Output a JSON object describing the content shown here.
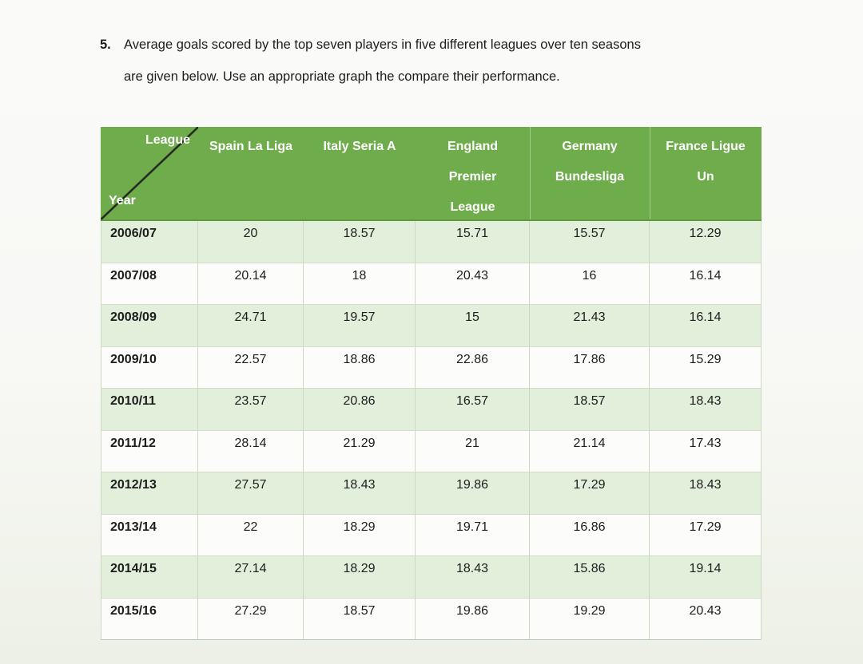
{
  "question": {
    "number": "5.",
    "line1": "Average goals scored by the top seven players in five different leagues over ten seasons",
    "line2": "are given below. Use an appropriate graph the compare their performance."
  },
  "table": {
    "corner": {
      "top_label": "League",
      "bottom_label": "Year"
    },
    "columns": [
      {
        "lines": [
          "Spain La Liga"
        ]
      },
      {
        "lines": [
          "Italy Seria A"
        ]
      },
      {
        "lines": [
          "England",
          "Premier",
          "League"
        ]
      },
      {
        "lines": [
          "Germany",
          "Bundesliga"
        ]
      },
      {
        "lines": [
          "France Ligue",
          "Un"
        ]
      }
    ],
    "rows": [
      {
        "year": "2006/07",
        "values": [
          "20",
          "18.57",
          "15.71",
          "15.57",
          "12.29"
        ]
      },
      {
        "year": "2007/08",
        "values": [
          "20.14",
          "18",
          "20.43",
          "16",
          "16.14"
        ]
      },
      {
        "year": "2008/09",
        "values": [
          "24.71",
          "19.57",
          "15",
          "21.43",
          "16.14"
        ]
      },
      {
        "year": "2009/10",
        "values": [
          "22.57",
          "18.86",
          "22.86",
          "17.86",
          "15.29"
        ]
      },
      {
        "year": "2010/11",
        "values": [
          "23.57",
          "20.86",
          "16.57",
          "18.57",
          "18.43"
        ]
      },
      {
        "year": "2011/12",
        "values": [
          "28.14",
          "21.29",
          "21",
          "21.14",
          "17.43"
        ]
      },
      {
        "year": "2012/13",
        "values": [
          "27.57",
          "18.43",
          "19.86",
          "17.29",
          "18.43"
        ]
      },
      {
        "year": "2013/14",
        "values": [
          "22",
          "18.29",
          "19.71",
          "16.86",
          "17.29"
        ]
      },
      {
        "year": "2014/15",
        "values": [
          "27.14",
          "18.29",
          "18.43",
          "15.86",
          "19.14"
        ]
      },
      {
        "year": "2015/16",
        "values": [
          "27.29",
          "18.57",
          "19.86",
          "19.29",
          "20.43"
        ]
      }
    ]
  },
  "chart_data": {
    "type": "table",
    "title": "Average goals scored by the top seven players in five different leagues over ten seasons",
    "categories": [
      "2006/07",
      "2007/08",
      "2008/09",
      "2009/10",
      "2010/11",
      "2011/12",
      "2012/13",
      "2013/14",
      "2014/15",
      "2015/16"
    ],
    "series": [
      {
        "name": "Spain La Liga",
        "values": [
          20,
          20.14,
          24.71,
          22.57,
          23.57,
          28.14,
          27.57,
          22,
          27.14,
          27.29
        ]
      },
      {
        "name": "Italy Seria A",
        "values": [
          18.57,
          18,
          19.57,
          18.86,
          20.86,
          21.29,
          18.43,
          18.29,
          18.29,
          18.57
        ]
      },
      {
        "name": "England Premier League",
        "values": [
          15.71,
          20.43,
          15,
          22.86,
          16.57,
          21,
          19.86,
          19.71,
          18.43,
          19.86
        ]
      },
      {
        "name": "Germany Bundesliga",
        "values": [
          15.57,
          16,
          21.43,
          17.86,
          18.57,
          21.14,
          17.29,
          16.86,
          15.86,
          19.29
        ]
      },
      {
        "name": "France Ligue Un",
        "values": [
          12.29,
          16.14,
          16.14,
          15.29,
          18.43,
          17.43,
          18.43,
          17.29,
          19.14,
          20.43
        ]
      }
    ]
  },
  "colors": {
    "header_green": "#6fad4c",
    "banded_row_green": "#e2efda",
    "row_white": "#fcfcfa",
    "grid_border": "#ccd8c1",
    "header_text": "#ffffff",
    "body_text": "#1d1d1d"
  }
}
